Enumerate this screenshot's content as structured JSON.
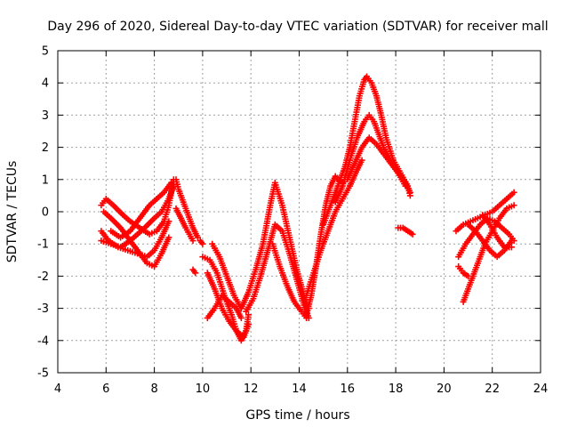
{
  "chart_data": {
    "type": "scatter",
    "title": "Day 296 of 2020, Sidereal Day-to-day VTEC variation (SDTVAR) for receiver mall",
    "xlabel": "GPS time / hours",
    "ylabel": "SDTVAR / TECUs",
    "xlim": [
      4,
      24
    ],
    "ylim": [
      -5,
      5
    ],
    "xticks": [
      4,
      6,
      8,
      10,
      12,
      14,
      16,
      18,
      20,
      22,
      24
    ],
    "yticks": [
      -5,
      -4,
      -3,
      -2,
      -1,
      0,
      1,
      2,
      3,
      4,
      5
    ],
    "grid": true,
    "marker": "+",
    "color": "#ff0000",
    "series": [
      {
        "name": "trace-1",
        "x": [
          5.8,
          6.0,
          6.3,
          6.7,
          7.0,
          7.4,
          7.8,
          8.1,
          8.4,
          8.6,
          8.8
        ],
        "y": [
          0.2,
          0.4,
          0.2,
          -0.1,
          -0.3,
          -0.5,
          -0.7,
          -0.6,
          -0.3,
          0.2,
          1.0
        ]
      },
      {
        "name": "trace-2",
        "x": [
          5.8,
          6.1,
          6.5,
          6.9,
          7.3,
          7.7,
          8.0,
          8.3,
          8.6
        ],
        "y": [
          -0.6,
          -0.9,
          -1.1,
          -1.2,
          -1.3,
          -1.4,
          -1.2,
          -0.8,
          -0.3
        ]
      },
      {
        "name": "trace-3",
        "x": [
          5.8,
          6.2,
          6.6,
          7.0,
          7.3,
          7.6,
          8.0,
          8.3,
          8.6,
          8.8
        ],
        "y": [
          -0.9,
          -1.0,
          -1.1,
          -0.9,
          -0.7,
          -0.5,
          -0.2,
          0.0,
          0.4,
          0.8
        ]
      },
      {
        "name": "trace-4",
        "x": [
          5.9,
          6.2,
          6.6,
          7.0,
          7.4,
          7.7,
          8.0,
          8.3,
          8.6
        ],
        "y": [
          0.0,
          -0.2,
          -0.5,
          -0.9,
          -1.3,
          -1.6,
          -1.7,
          -1.3,
          -0.8
        ]
      },
      {
        "name": "trace-5",
        "x": [
          6.2,
          6.6,
          7.0,
          7.4,
          7.8,
          8.1,
          8.4,
          8.7
        ],
        "y": [
          -0.6,
          -0.8,
          -0.6,
          -0.2,
          0.2,
          0.4,
          0.6,
          0.9
        ]
      },
      {
        "name": "trace-6",
        "x": [
          8.9,
          9.0,
          9.2,
          9.4,
          9.6,
          9.8
        ],
        "y": [
          1.0,
          0.7,
          0.3,
          -0.1,
          -0.5,
          -0.8
        ]
      },
      {
        "name": "trace-7",
        "x": [
          8.9,
          9.1,
          9.3,
          9.6
        ],
        "y": [
          0.1,
          -0.2,
          -0.5,
          -0.9
        ]
      },
      {
        "name": "trace-8",
        "x": [
          9.6,
          9.7
        ],
        "y": [
          -1.8,
          -1.9
        ]
      },
      {
        "name": "trace-9",
        "x": [
          9.9,
          10.0
        ],
        "y": [
          -0.9,
          -1.0
        ]
      },
      {
        "name": "trace-10",
        "x": [
          10.0,
          10.3,
          10.6,
          10.9,
          11.2,
          11.4,
          11.6,
          11.8,
          11.9
        ],
        "y": [
          -1.4,
          -1.5,
          -1.9,
          -2.6,
          -3.2,
          -3.7,
          -4.0,
          -3.7,
          -3.2
        ]
      },
      {
        "name": "trace-11",
        "x": [
          10.2,
          10.5,
          10.8,
          11.1,
          11.4,
          11.7,
          11.9
        ],
        "y": [
          -1.9,
          -2.4,
          -3.0,
          -3.4,
          -3.7,
          -3.9,
          -3.5
        ]
      },
      {
        "name": "trace-12",
        "x": [
          10.2,
          10.5,
          10.8,
          11.1,
          11.4,
          11.6
        ],
        "y": [
          -3.3,
          -3.0,
          -2.6,
          -2.8,
          -3.0,
          -3.3
        ]
      },
      {
        "name": "trace-13",
        "x": [
          10.4,
          10.7,
          11.0,
          11.3,
          11.6
        ],
        "y": [
          -1.0,
          -1.4,
          -2.0,
          -2.6,
          -3.0
        ]
      },
      {
        "name": "trace-14",
        "x": [
          11.6,
          11.9,
          12.2,
          12.5,
          12.8,
          13.0,
          13.3,
          13.6,
          13.9,
          14.2,
          14.4
        ],
        "y": [
          -3.0,
          -2.5,
          -1.8,
          -1.0,
          0.2,
          0.9,
          0.2,
          -0.8,
          -1.8,
          -2.6,
          -3.0
        ]
      },
      {
        "name": "trace-15",
        "x": [
          11.8,
          12.1,
          12.4,
          12.7,
          13.0,
          13.3,
          13.6,
          13.9,
          14.2,
          14.4
        ],
        "y": [
          -3.1,
          -2.7,
          -2.0,
          -1.2,
          -0.4,
          -0.6,
          -1.3,
          -2.1,
          -2.9,
          -3.3
        ]
      },
      {
        "name": "trace-16",
        "x": [
          12.9,
          13.2,
          13.5,
          13.8,
          14.1,
          14.3
        ],
        "y": [
          -1.0,
          -1.7,
          -2.3,
          -2.8,
          -3.1,
          -3.3
        ]
      },
      {
        "name": "trace-17",
        "x": [
          14.3,
          14.5,
          14.7,
          14.9,
          15.1,
          15.3,
          15.5,
          15.8
        ],
        "y": [
          -3.2,
          -2.6,
          -1.7,
          -0.7,
          0.2,
          0.8,
          1.1,
          0.9
        ]
      },
      {
        "name": "trace-18",
        "x": [
          14.3,
          14.6,
          14.9,
          15.2,
          15.5,
          15.8,
          16.1,
          16.4,
          16.6
        ],
        "y": [
          -2.6,
          -1.9,
          -1.2,
          -0.6,
          0.0,
          0.4,
          0.8,
          1.3,
          1.6
        ]
      },
      {
        "name": "trace-19",
        "x": [
          15.0,
          15.3,
          15.6,
          15.9,
          16.1,
          16.3,
          16.5,
          16.7,
          16.8,
          17.0,
          17.2,
          17.4,
          17.6,
          17.9,
          18.2,
          18.5,
          18.6
        ],
        "y": [
          -0.4,
          0.2,
          0.8,
          1.4,
          2.0,
          2.8,
          3.6,
          4.1,
          4.2,
          4.0,
          3.6,
          3.0,
          2.3,
          1.6,
          1.2,
          0.8,
          0.5
        ]
      },
      {
        "name": "trace-20",
        "x": [
          15.5,
          15.8,
          16.1,
          16.4,
          16.7,
          16.9,
          17.1,
          17.3,
          17.5,
          17.8,
          18.1,
          18.4
        ],
        "y": [
          0.3,
          0.8,
          1.6,
          2.3,
          2.8,
          3.0,
          2.8,
          2.4,
          2.0,
          1.6,
          1.2,
          0.8
        ]
      },
      {
        "name": "trace-21",
        "x": [
          16.0,
          16.3,
          16.6,
          16.9,
          17.2,
          17.5,
          17.8,
          18.1,
          18.4,
          18.6
        ],
        "y": [
          1.0,
          1.5,
          2.0,
          2.3,
          2.1,
          1.8,
          1.5,
          1.2,
          0.9,
          0.6
        ]
      },
      {
        "name": "trace-22",
        "x": [
          18.1,
          18.3,
          18.5,
          18.7
        ],
        "y": [
          -0.5,
          -0.5,
          -0.6,
          -0.7
        ]
      },
      {
        "name": "trace-23",
        "x": [
          20.5,
          20.8,
          21.1,
          21.4,
          21.7,
          22.0,
          22.3,
          22.6,
          22.9
        ],
        "y": [
          -0.6,
          -0.4,
          -0.3,
          -0.2,
          -0.1,
          0.0,
          0.2,
          0.4,
          0.6
        ]
      },
      {
        "name": "trace-24",
        "x": [
          20.6,
          20.9,
          21.2,
          21.5,
          21.8,
          22.1,
          22.4,
          22.7,
          22.9
        ],
        "y": [
          -1.4,
          -1.0,
          -0.7,
          -0.4,
          -0.2,
          -0.3,
          -0.5,
          -0.7,
          -0.9
        ]
      },
      {
        "name": "trace-25",
        "x": [
          20.8,
          21.1,
          21.4,
          21.7,
          22.0,
          22.3,
          22.6,
          22.9
        ],
        "y": [
          -2.8,
          -2.2,
          -1.6,
          -1.0,
          -0.6,
          -0.2,
          0.1,
          0.2
        ]
      },
      {
        "name": "trace-26",
        "x": [
          20.6,
          20.8,
          21.0
        ],
        "y": [
          -1.7,
          -1.9,
          -2.0
        ]
      },
      {
        "name": "trace-27",
        "x": [
          21.0,
          21.3,
          21.6,
          21.9,
          22.2,
          22.5,
          22.8
        ],
        "y": [
          -0.4,
          -0.6,
          -0.9,
          -1.2,
          -1.4,
          -1.2,
          -0.9
        ]
      },
      {
        "name": "trace-28",
        "x": [
          21.6,
          21.9,
          22.2,
          22.5,
          22.8
        ],
        "y": [
          -0.1,
          -0.4,
          -0.8,
          -1.1,
          -1.1
        ]
      }
    ]
  }
}
